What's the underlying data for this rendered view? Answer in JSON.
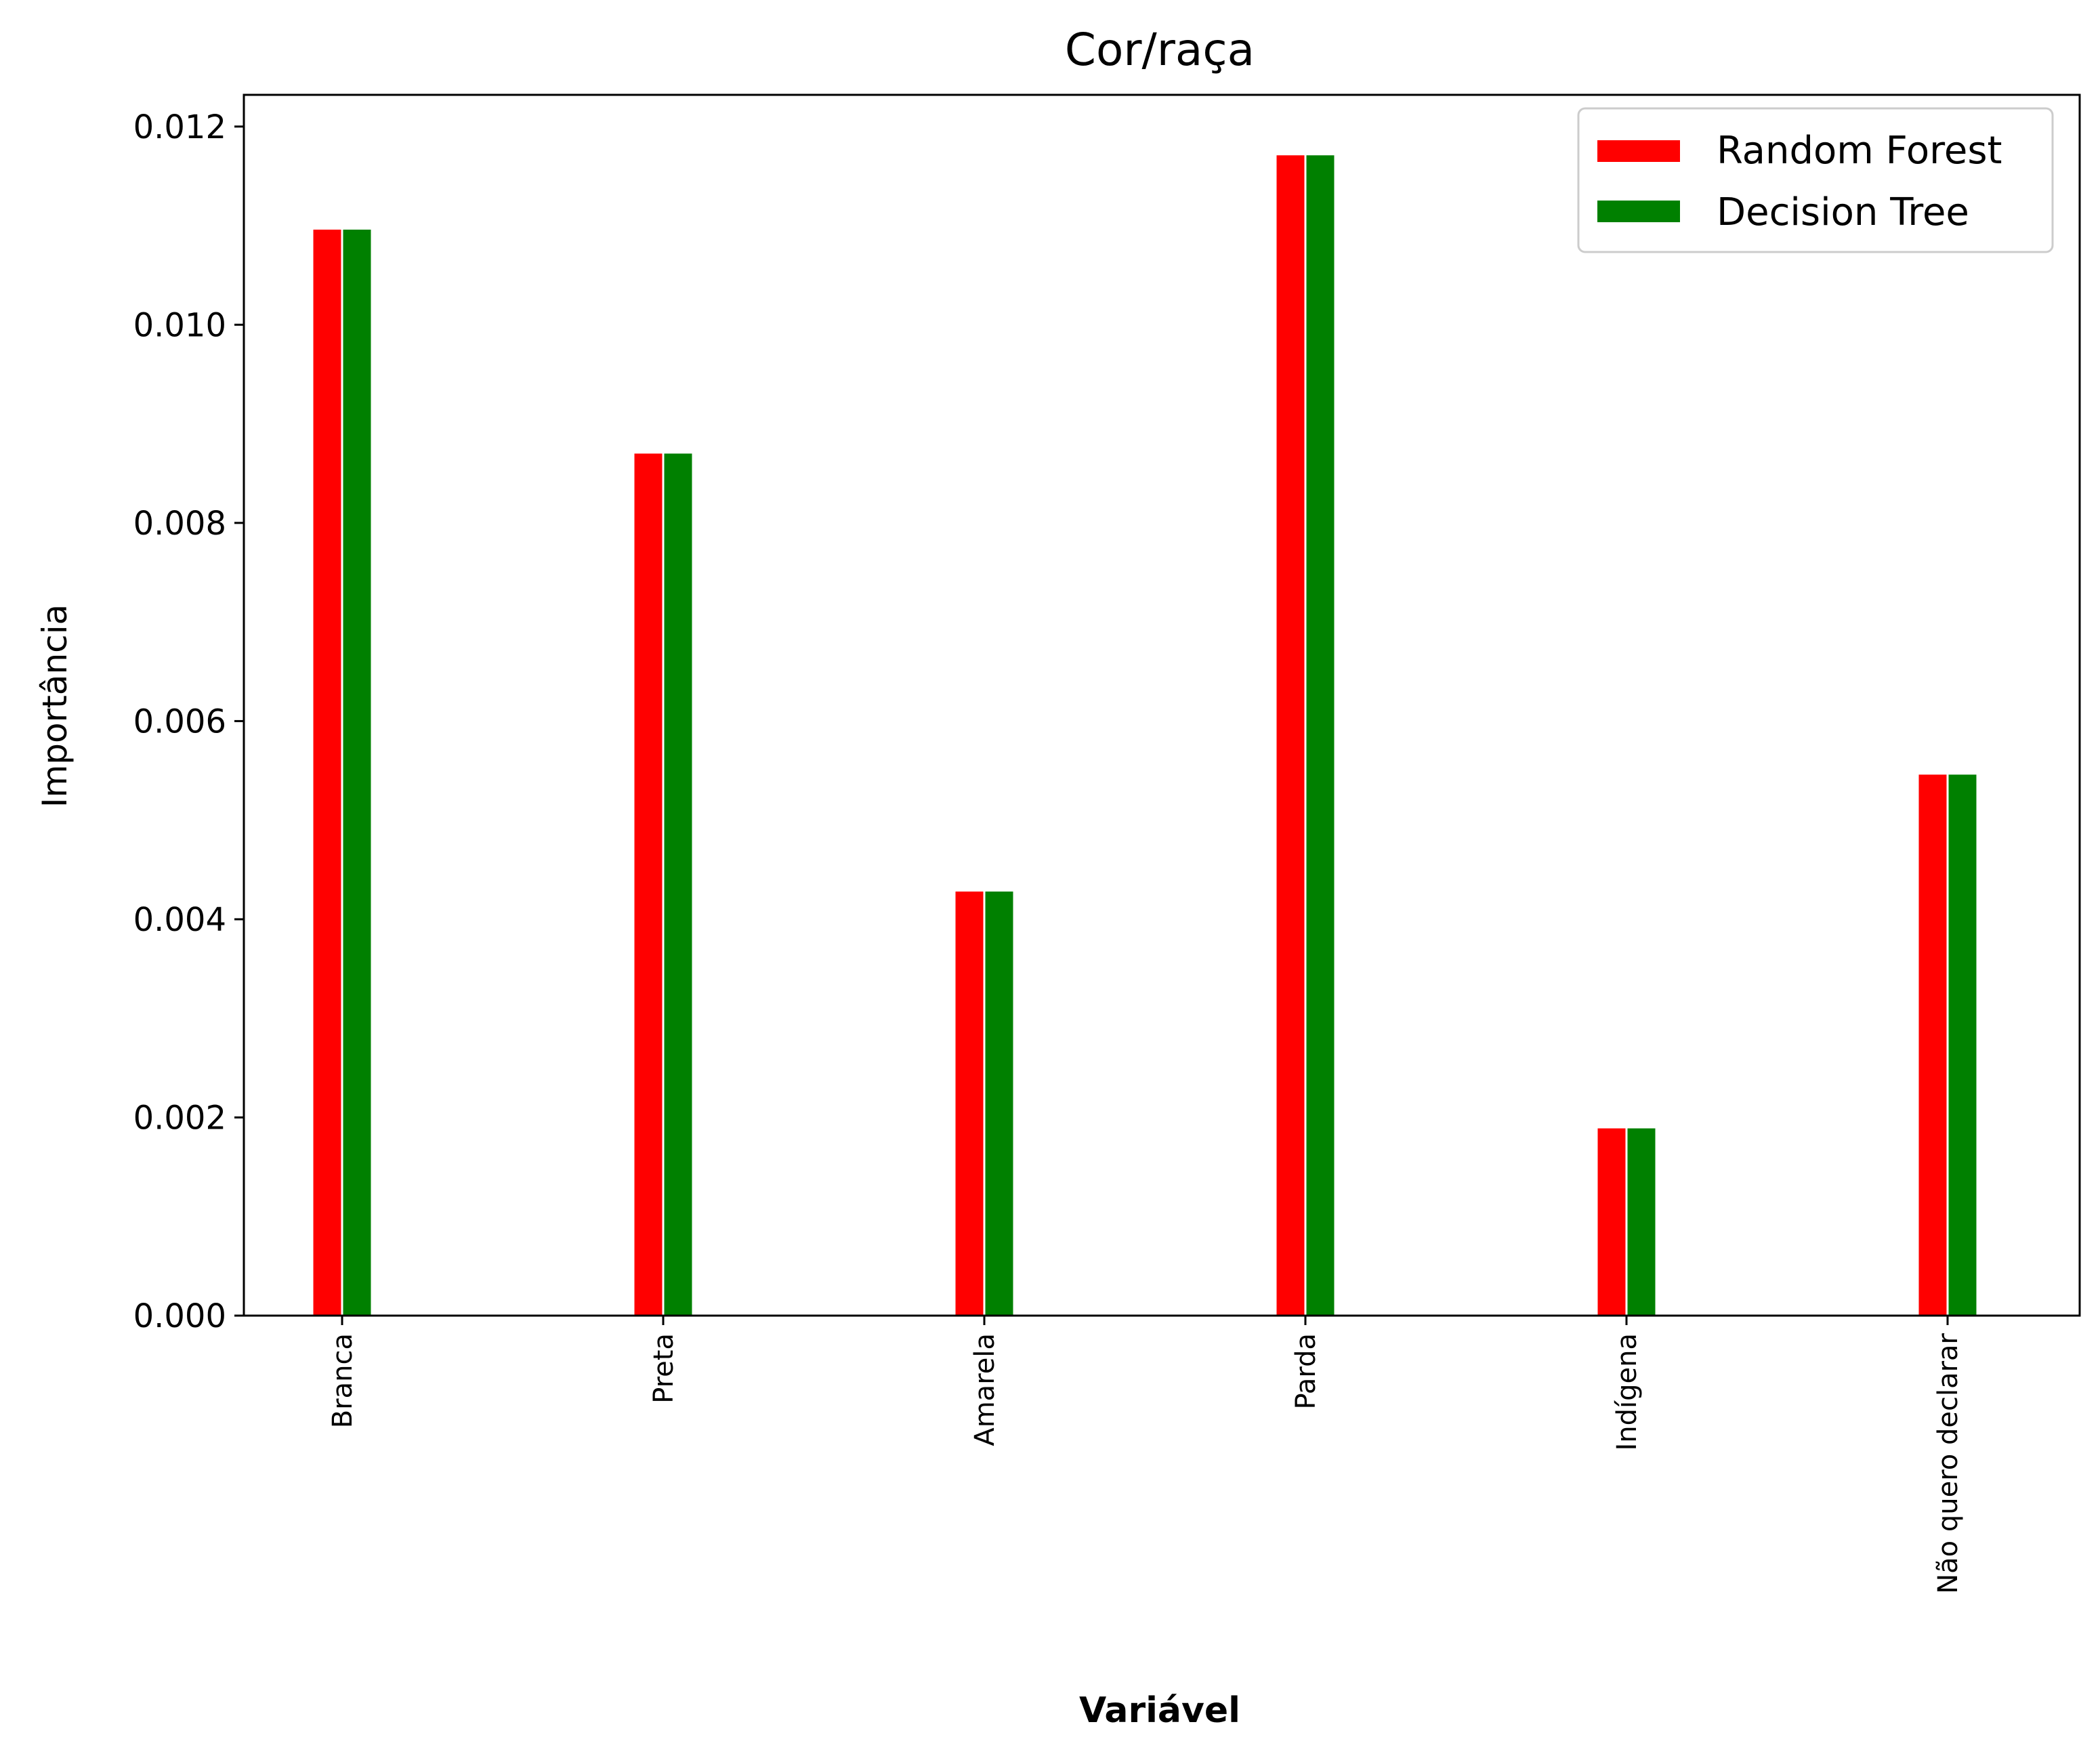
{
  "chart_data": {
    "type": "bar",
    "title": "Cor/raça",
    "xlabel": "Variável",
    "ylabel": "Importância",
    "categories": [
      "Branca",
      "Preta",
      "Amarela",
      "Parda",
      "Indígena",
      "Não quero declarar"
    ],
    "series": [
      {
        "name": "Random Forest",
        "color": "#ff0000",
        "values": [
          0.01097,
          0.00871,
          0.00429,
          0.01172,
          0.0019,
          0.00547
        ]
      },
      {
        "name": "Decision Tree",
        "color": "#008000",
        "values": [
          0.01097,
          0.00871,
          0.00429,
          0.01172,
          0.0019,
          0.00547
        ]
      }
    ],
    "ylim": [
      0,
      0.01232
    ],
    "yticks": [
      "0.000",
      "0.002",
      "0.004",
      "0.006",
      "0.008",
      "0.010",
      "0.012"
    ],
    "ytick_values": [
      0,
      0.002,
      0.004,
      0.006,
      0.008,
      0.01,
      0.012
    ],
    "grid": false,
    "legend_position": "top-right"
  }
}
